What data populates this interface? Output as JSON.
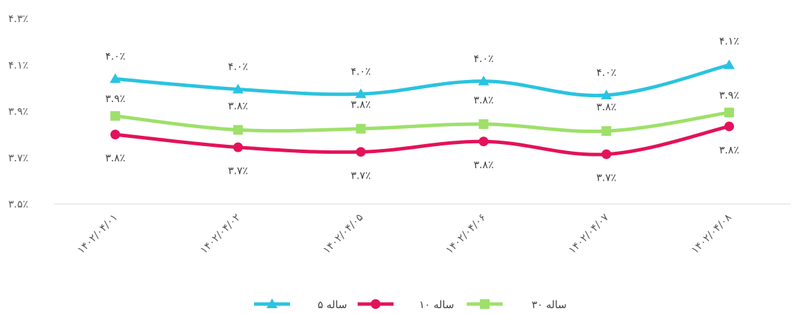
{
  "chart_data": {
    "type": "line",
    "categories": [
      "۱۴۰۲/۰۴/۰۱",
      "۱۴۰۲/۰۴/۰۲",
      "۱۴۰۲/۰۴/۰۵",
      "۱۴۰۲/۰۴/۰۶",
      "۱۴۰۲/۰۴/۰۷",
      "۱۴۰۲/۰۴/۰۸"
    ],
    "ylim": [
      3.5,
      4.3
    ],
    "yticks": [
      {
        "value": 3.5,
        "label": "۳.۵٪"
      },
      {
        "value": 3.7,
        "label": "۳.۷٪"
      },
      {
        "value": 3.9,
        "label": "۳.۹٪"
      },
      {
        "value": 4.1,
        "label": "۴.۱٪"
      },
      {
        "value": 4.3,
        "label": "۴.۳٪"
      }
    ],
    "grid": false,
    "legend_position": "bottom",
    "series": [
      {
        "name": "۵ ساله",
        "color": "#2ac3e0",
        "marker": "triangle",
        "values": [
          4.04,
          3.995,
          3.975,
          4.03,
          3.97,
          4.1
        ],
        "labels": [
          "۴.۰٪",
          "۴.۰٪",
          "۴.۰٪",
          "۴.۰٪",
          "۴.۰٪",
          "۴.۱٪"
        ],
        "label_position": "above"
      },
      {
        "name": "۱۰ ساله",
        "color": "#e3125a",
        "marker": "circle",
        "values": [
          3.8,
          3.745,
          3.725,
          3.77,
          3.715,
          3.835
        ],
        "labels": [
          "۳.۸٪",
          "۳.۷٪",
          "۳.۷٪",
          "۳.۸٪",
          "۳.۷٪",
          "۳.۸٪"
        ],
        "label_position": "below"
      },
      {
        "name": "۳۰ ساله",
        "color": "#9ee06a",
        "marker": "square",
        "values": [
          3.88,
          3.82,
          3.825,
          3.845,
          3.815,
          3.895
        ],
        "labels": [
          "۳.۹٪",
          "۳.۸٪",
          "۳.۸٪",
          "۳.۸٪",
          "۳.۸٪",
          "۳.۹٪"
        ],
        "label_position": "above-alt"
      }
    ]
  }
}
